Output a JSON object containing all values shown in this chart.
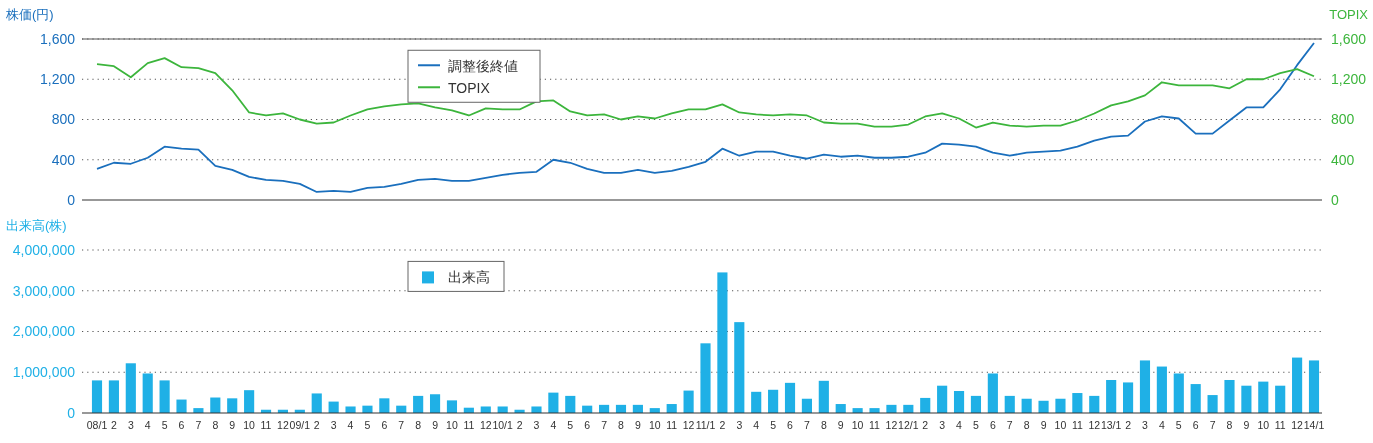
{
  "chart_data": [
    {
      "type": "line",
      "ylabel": "株価(円)",
      "y2label": "TOPIX",
      "categories": [
        null,
        null,
        null,
        null,
        null,
        null,
        null,
        null,
        null,
        null,
        null,
        null,
        null,
        null,
        null,
        null,
        null,
        null,
        null,
        null,
        null,
        null,
        null,
        null,
        null,
        null,
        null,
        null,
        null,
        null,
        null,
        null,
        null,
        null,
        null,
        null,
        null,
        null,
        null,
        null,
        null,
        null,
        null,
        null,
        null,
        null,
        null,
        null,
        null,
        null,
        null,
        null,
        null,
        null,
        null,
        null,
        null,
        null,
        null,
        null,
        null,
        null,
        null,
        null,
        null,
        null,
        null,
        null,
        null,
        null,
        null,
        null,
        null
      ],
      "series": [
        {
          "name": "調整後終値",
          "color": "#1a6fbd",
          "values": [
            310,
            370,
            360,
            420,
            530,
            510,
            500,
            340,
            300,
            230,
            200,
            190,
            160,
            80,
            90,
            80,
            120,
            130,
            160,
            200,
            210,
            190,
            190,
            220,
            250,
            270,
            280,
            400,
            370,
            310,
            270,
            270,
            300,
            270,
            290,
            330,
            380,
            510,
            440,
            480,
            480,
            440,
            410,
            450,
            430,
            440,
            420,
            420,
            430,
            470,
            560,
            550,
            530,
            470,
            440,
            470,
            480,
            490,
            530,
            590,
            630,
            640,
            780,
            830,
            810,
            660,
            660,
            790,
            920,
            920,
            1100,
            1340,
            1560
          ]
        },
        {
          "name": "TOPIX",
          "color": "#3cb53c",
          "axis": "y2",
          "values": [
            1350,
            1330,
            1220,
            1360,
            1410,
            1320,
            1310,
            1260,
            1090,
            870,
            840,
            860,
            800,
            760,
            770,
            840,
            900,
            930,
            950,
            960,
            920,
            890,
            840,
            910,
            900,
            900,
            980,
            990,
            880,
            840,
            850,
            800,
            830,
            810,
            860,
            900,
            900,
            950,
            870,
            850,
            840,
            850,
            840,
            770,
            760,
            760,
            730,
            730,
            750,
            830,
            860,
            810,
            720,
            770,
            740,
            730,
            740,
            740,
            790,
            860,
            940,
            980,
            1040,
            1170,
            1140,
            1140,
            1140,
            1110,
            1200,
            1200,
            1260,
            1300,
            1230
          ]
        }
      ],
      "ylim": [
        0,
        1600
      ],
      "yticks": [
        0,
        400,
        800,
        {
          "value": 1200,
          "label": "1,200"
        },
        {
          "value": 1600,
          "label": "1,600"
        }
      ],
      "y2lim": [
        0,
        1600
      ],
      "y2ticks": [
        0,
        400,
        800,
        {
          "value": 1200,
          "label": "1,200"
        },
        {
          "value": 1600,
          "label": "1,600"
        }
      ],
      "grid": "y",
      "legend": "top",
      "tick_labels": "y"
    },
    {
      "type": "bar",
      "ylabel": "出来高(株)",
      "categories": [
        "08/1",
        "2",
        "3",
        "4",
        "5",
        "6",
        "7",
        "8",
        "9",
        "10",
        "11",
        "12",
        "09/1",
        "2",
        "3",
        "4",
        "5",
        "6",
        "7",
        "8",
        "9",
        "10",
        "11",
        "12",
        "10/1",
        "2",
        "3",
        "4",
        "5",
        "6",
        "7",
        "8",
        "9",
        "10",
        "11",
        "12",
        "11/1",
        "2",
        "3",
        "4",
        "5",
        "6",
        "7",
        "8",
        "9",
        "10",
        "11",
        "12",
        "12/1",
        "2",
        "3",
        "4",
        "5",
        "6",
        "7",
        "8",
        "9",
        "10",
        "11",
        "12",
        "13/1",
        "2",
        "3",
        "4",
        "5",
        "6",
        "7",
        "8",
        "9",
        "10",
        "11",
        "12",
        "14/1"
      ],
      "series": [
        {
          "name": "出来高",
          "color": "#1fb0e6",
          "values": [
            800000,
            800000,
            1220000,
            970000,
            800000,
            330000,
            120000,
            380000,
            360000,
            560000,
            80000,
            80000,
            80000,
            480000,
            280000,
            160000,
            180000,
            360000,
            180000,
            420000,
            460000,
            310000,
            130000,
            160000,
            160000,
            80000,
            160000,
            500000,
            420000,
            180000,
            200000,
            200000,
            200000,
            120000,
            220000,
            550000,
            1710000,
            3450000,
            2230000,
            520000,
            570000,
            740000,
            350000,
            790000,
            220000,
            120000,
            120000,
            200000,
            200000,
            370000,
            670000,
            540000,
            420000,
            970000,
            420000,
            350000,
            300000,
            350000,
            490000,
            420000,
            810000,
            750000,
            1290000,
            1140000,
            970000,
            710000,
            440000,
            810000,
            670000,
            770000,
            670000,
            1360000,
            1290000
          ]
        }
      ],
      "ylim": [
        0,
        4000000
      ],
      "yticks": [
        0,
        {
          "value": 1000000,
          "label": "1,000,000"
        },
        {
          "value": 2000000,
          "label": "2,000,000"
        },
        {
          "value": 3000000,
          "label": "3,000,000"
        },
        {
          "value": 4000000,
          "label": "4,000,000"
        }
      ],
      "grid": "y",
      "legend": "top"
    }
  ]
}
